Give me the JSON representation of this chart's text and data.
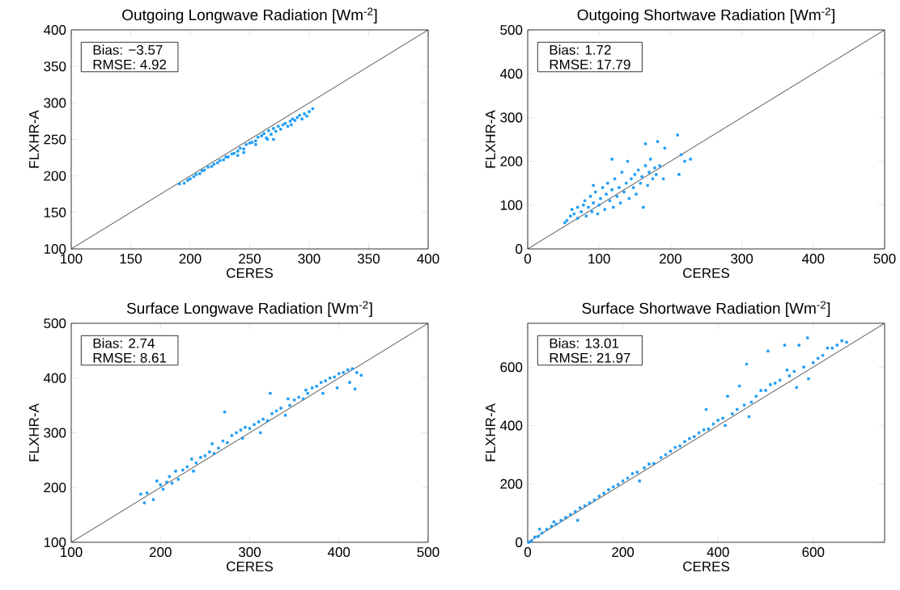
{
  "chart_data": [
    {
      "type": "scatter",
      "title": "Outgoing Longwave Radiation [Wm$^{-2}$]",
      "xlabel": "CERES",
      "ylabel": "FLXHR-A",
      "annotations": [
        "Bias: −3.57",
        "RMSE: 4.92"
      ],
      "xlim": [
        100,
        400
      ],
      "ylim": [
        100,
        400
      ],
      "xticks": [
        100,
        150,
        200,
        250,
        300,
        350,
        400
      ],
      "yticks": [
        100,
        150,
        200,
        250,
        300,
        350,
        400
      ],
      "series": [
        {
          "type": "scatter",
          "marker": "square",
          "color": "#1c9cf6",
          "x": [
            191,
            195,
            198,
            200,
            203,
            205,
            208,
            210,
            212,
            215,
            218,
            220,
            223,
            225,
            228,
            230,
            232,
            235,
            237,
            240,
            242,
            245,
            247,
            250,
            252,
            255,
            257,
            260,
            262,
            264,
            266,
            268,
            270,
            272,
            274,
            276,
            278,
            280,
            282,
            284,
            286,
            288,
            290,
            292,
            294,
            296,
            298,
            300,
            303,
            245,
            270,
            285,
            255,
            240,
            265
          ],
          "values": [
            189,
            190,
            194,
            196,
            199,
            202,
            203,
            207,
            208,
            212,
            213,
            216,
            218,
            221,
            222,
            226,
            226,
            230,
            231,
            234,
            238,
            237,
            243,
            245,
            246,
            248,
            253,
            255,
            258,
            252,
            262,
            257,
            265,
            261,
            268,
            264,
            270,
            272,
            268,
            275,
            278,
            276,
            280,
            283,
            278,
            285,
            282,
            288,
            292,
            232,
            250,
            270,
            243,
            228,
            250
          ]
        },
        {
          "type": "line",
          "marker": "none",
          "color": "#000000",
          "x": [
            100,
            400
          ],
          "values": [
            100,
            400
          ]
        }
      ]
    },
    {
      "type": "scatter",
      "title": "Outgoing Shortwave Radiation [Wm$^{-2}$]",
      "xlabel": "CERES",
      "ylabel": "FLXHR-A",
      "annotations": [
        "Bias: 1.72",
        "RMSE: 17.79"
      ],
      "xlim": [
        0,
        500
      ],
      "ylim": [
        0,
        500
      ],
      "xticks": [
        0,
        100,
        200,
        300,
        400,
        500
      ],
      "yticks": [
        0,
        100,
        200,
        300,
        400,
        500
      ],
      "series": [
        {
          "type": "scatter",
          "marker": "square",
          "color": "#1c9cf6",
          "x": [
            52,
            55,
            60,
            62,
            65,
            70,
            70,
            75,
            78,
            80,
            82,
            85,
            88,
            90,
            92,
            95,
            98,
            100,
            102,
            105,
            108,
            110,
            112,
            115,
            118,
            120,
            122,
            125,
            128,
            130,
            132,
            135,
            138,
            140,
            142,
            145,
            148,
            150,
            152,
            155,
            158,
            160,
            162,
            165,
            165,
            168,
            170,
            172,
            175,
            178,
            180,
            182,
            185,
            190,
            192,
            210,
            212,
            215,
            220,
            228,
            118,
            92
          ],
          "values": [
            60,
            65,
            75,
            90,
            80,
            70,
            95,
            85,
            100,
            110,
            75,
            95,
            120,
            85,
            105,
            130,
            80,
            100,
            115,
            140,
            90,
            125,
            150,
            110,
            135,
            95,
            160,
            120,
            140,
            105,
            175,
            130,
            150,
            200,
            115,
            160,
            140,
            170,
            125,
            180,
            150,
            165,
            95,
            190,
            240,
            145,
            175,
            205,
            160,
            185,
            170,
            245,
            190,
            160,
            230,
            260,
            170,
            215,
            200,
            205,
            205,
            145
          ]
        },
        {
          "type": "line",
          "marker": "none",
          "color": "#000000",
          "x": [
            0,
            500
          ],
          "values": [
            0,
            500
          ]
        }
      ]
    },
    {
      "type": "scatter",
      "title": "Surface Longwave Radiation [Wm$^{-2}$]",
      "xlabel": "CERES",
      "ylabel": "FLXHR-A",
      "annotations": [
        "Bias: 2.74",
        "RMSE: 8.61"
      ],
      "xlim": [
        100,
        500
      ],
      "ylim": [
        100,
        500
      ],
      "xticks": [
        100,
        200,
        300,
        400,
        500
      ],
      "yticks": [
        100,
        200,
        300,
        400,
        500
      ],
      "series": [
        {
          "type": "scatter",
          "marker": "square",
          "color": "#1c9cf6",
          "x": [
            178,
            182,
            185,
            192,
            196,
            200,
            203,
            207,
            210,
            213,
            217,
            220,
            225,
            230,
            235,
            237,
            240,
            245,
            250,
            255,
            258,
            260,
            265,
            270,
            272,
            275,
            280,
            285,
            290,
            292,
            295,
            300,
            305,
            310,
            312,
            315,
            320,
            323,
            325,
            330,
            335,
            340,
            343,
            345,
            350,
            355,
            360,
            363,
            365,
            370,
            375,
            380,
            382,
            385,
            390,
            395,
            398,
            400,
            405,
            410,
            412,
            415,
            418,
            420,
            425
          ],
          "values": [
            188,
            172,
            190,
            178,
            212,
            205,
            197,
            210,
            220,
            208,
            230,
            215,
            232,
            238,
            252,
            230,
            245,
            255,
            258,
            265,
            280,
            262,
            272,
            285,
            338,
            282,
            295,
            300,
            305,
            290,
            310,
            308,
            315,
            320,
            300,
            325,
            322,
            372,
            335,
            340,
            345,
            332,
            362,
            350,
            360,
            365,
            362,
            378,
            372,
            382,
            385,
            392,
            372,
            395,
            400,
            402,
            382,
            408,
            410,
            415,
            392,
            417,
            380,
            410,
            405
          ]
        },
        {
          "type": "line",
          "marker": "none",
          "color": "#000000",
          "x": [
            100,
            500
          ],
          "values": [
            100,
            500
          ]
        }
      ]
    },
    {
      "type": "scatter",
      "title": "Surface Shortwave Radiation [Wm$^{-2}$]",
      "xlabel": "CERES",
      "ylabel": "FLXHR-A",
      "annotations": [
        "Bias: 13.01",
        "RMSE: 21.97"
      ],
      "xlim": [
        0,
        750
      ],
      "ylim": [
        0,
        750
      ],
      "xticks": [
        0,
        200,
        400,
        600
      ],
      "yticks": [
        0,
        200,
        400,
        600
      ],
      "series": [
        {
          "type": "scatter",
          "marker": "square",
          "color": "#1c9cf6",
          "x": [
            2,
            8,
            15,
            22,
            25,
            30,
            40,
            50,
            55,
            60,
            70,
            80,
            90,
            100,
            105,
            110,
            120,
            130,
            140,
            150,
            160,
            170,
            180,
            190,
            200,
            210,
            220,
            230,
            235,
            245,
            255,
            265,
            280,
            290,
            300,
            310,
            320,
            330,
            340,
            350,
            360,
            370,
            375,
            380,
            390,
            400,
            410,
            415,
            420,
            430,
            440,
            445,
            455,
            460,
            465,
            470,
            480,
            490,
            500,
            505,
            510,
            520,
            530,
            540,
            545,
            550,
            560,
            565,
            570,
            580,
            588,
            590,
            600,
            610,
            620,
            630,
            640,
            650,
            660,
            670
          ],
          "values": [
            0,
            5,
            18,
            20,
            45,
            32,
            45,
            55,
            70,
            62,
            75,
            85,
            95,
            105,
            75,
            118,
            125,
            135,
            145,
            158,
            168,
            180,
            190,
            198,
            210,
            220,
            235,
            240,
            210,
            255,
            268,
            270,
            290,
            300,
            312,
            325,
            330,
            345,
            355,
            362,
            375,
            385,
            455,
            388,
            405,
            418,
            425,
            400,
            500,
            440,
            455,
            535,
            470,
            610,
            430,
            480,
            500,
            520,
            520,
            655,
            540,
            545,
            555,
            675,
            590,
            570,
            585,
            530,
            675,
            600,
            700,
            560,
            615,
            630,
            640,
            665,
            665,
            675,
            690,
            685
          ]
        },
        {
          "type": "line",
          "marker": "none",
          "color": "#000000",
          "x": [
            0,
            750
          ],
          "values": [
            0,
            750
          ]
        }
      ]
    }
  ]
}
